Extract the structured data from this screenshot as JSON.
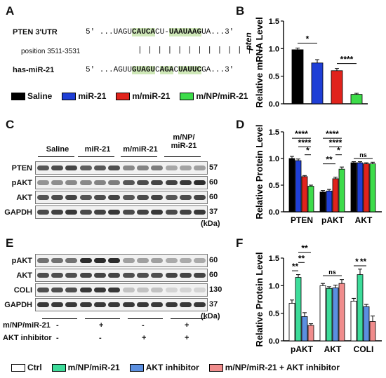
{
  "panel_letters": [
    "A",
    "B",
    "C",
    "D",
    "E",
    "F"
  ],
  "panelA": {
    "gene_label": "PTEN 3'UTR",
    "position": "position 3511-3531",
    "mirna_label": "has-miR-21",
    "seq_top": [
      {
        "t": "5' ...UAGU",
        "h": false
      },
      {
        "t": "CAUCA",
        "h": true
      },
      {
        "t": "CU-",
        "h": false
      },
      {
        "t": "UA",
        "h": true
      },
      {
        "t": "AUAAG",
        "h": true
      },
      {
        "t": "UA",
        "h": false
      },
      {
        "t": "...3'",
        "h": false
      }
    ],
    "pairs": "| | | | |    | | |   | | | | |",
    "seq_bottom": [
      {
        "t": "5' ...AGUU",
        "h": false
      },
      {
        "t": "GUAGU",
        "h": true
      },
      {
        "t": "C",
        "h": false
      },
      {
        "t": "AGA",
        "h": true
      },
      {
        "t": "C",
        "h": false
      },
      {
        "t": "UAUUC",
        "h": true
      },
      {
        "t": "GA",
        "h": false
      },
      {
        "t": "...3'",
        "h": false
      }
    ]
  },
  "legend_top": [
    {
      "label": "Saline",
      "color": "#000000"
    },
    {
      "label": "miR-21",
      "color": "#1f3fd6"
    },
    {
      "label": "m/miR-21",
      "color": "#e0231c"
    },
    {
      "label": "m/NP/miR-21",
      "color": "#3ddc4a"
    }
  ],
  "panelC": {
    "groups": [
      "Saline",
      "miR-21",
      "m/miR-21",
      "m/NP/\nmiR-21"
    ],
    "rows": [
      "PTEN",
      "pAKT",
      "AKT",
      "GAPDH"
    ],
    "mw": [
      "57",
      "60",
      "60",
      "37"
    ],
    "unit": "(kDa)"
  },
  "panelE": {
    "rows": [
      "pAKT",
      "AKT",
      "COLI",
      "GAPDH"
    ],
    "mw": [
      "60",
      "60",
      "130",
      "37"
    ],
    "unit": "(kDa)",
    "treat_labels": [
      "m/NP/miR-21",
      "AKT inhibitor"
    ],
    "treat_signs": [
      [
        "-",
        "+",
        "-",
        "+"
      ],
      [
        "-",
        "-",
        "+",
        "+"
      ]
    ]
  },
  "legend_bottom": [
    {
      "label": "Ctrl",
      "color": "#ffffff"
    },
    {
      "label": "m/NP/miR-21",
      "color": "#3ddc9a"
    },
    {
      "label": "AKT inhibitor",
      "color": "#5b8fe0"
    },
    {
      "label": "m/NP/miR-21 + AKT inhibitor",
      "color": "#f08c8c"
    }
  ],
  "chart_data": [
    {
      "id": "B",
      "type": "bar",
      "ylabel": "Relative mRNA Level",
      "italic_label": "pten",
      "ylim": [
        0,
        1.5
      ],
      "yticks": [
        0.0,
        0.5,
        1.0,
        1.5
      ],
      "categories": [
        "Saline",
        "miR-21",
        "m/miR-21",
        "m/NP/miR-21"
      ],
      "values": [
        0.98,
        0.74,
        0.6,
        0.17
      ],
      "errors": [
        0.03,
        0.06,
        0.04,
        0.02
      ],
      "colors": [
        "#000000",
        "#1f3fd6",
        "#e0231c",
        "#3ddc4a"
      ],
      "sig": [
        {
          "from": 0,
          "to": 1,
          "label": "*",
          "y": 1.1
        },
        {
          "from": 2,
          "to": 3,
          "label": "****",
          "y": 0.73
        }
      ]
    },
    {
      "id": "D",
      "type": "bar",
      "ylabel": "Relative Protein Level",
      "ylim": [
        0,
        1.5
      ],
      "yticks": [
        0.0,
        0.5,
        1.0,
        1.5
      ],
      "groups": [
        "PTEN",
        "pAKT",
        "AKT"
      ],
      "series": [
        {
          "name": "Saline",
          "color": "#000000",
          "values": [
            1.0,
            0.37,
            0.92
          ],
          "errors": [
            0.04,
            0.03,
            0.02
          ]
        },
        {
          "name": "miR-21",
          "color": "#1f3fd6",
          "values": [
            0.96,
            0.39,
            0.92
          ],
          "errors": [
            0.03,
            0.03,
            0.02
          ]
        },
        {
          "name": "m/miR-21",
          "color": "#e0231c",
          "values": [
            0.66,
            0.62,
            0.9
          ],
          "errors": [
            0.02,
            0.03,
            0.02
          ]
        },
        {
          "name": "m/NP/miR-21",
          "color": "#3ddc4a",
          "values": [
            0.48,
            0.8,
            0.9
          ],
          "errors": [
            0.02,
            0.04,
            0.03
          ]
        }
      ],
      "sig": [
        {
          "g": 0,
          "from": 0,
          "to": 3,
          "label": "****",
          "y": 1.38
        },
        {
          "g": 0,
          "from": 1,
          "to": 3,
          "label": "****",
          "y": 1.22
        },
        {
          "g": 0,
          "from": 2,
          "to": 3,
          "label": "*",
          "y": 1.07
        },
        {
          "g": 1,
          "from": 0,
          "to": 3,
          "label": "****",
          "y": 1.38
        },
        {
          "g": 1,
          "from": 1,
          "to": 3,
          "label": "****",
          "y": 1.22
        },
        {
          "g": 1,
          "from": 2,
          "to": 3,
          "label": "*",
          "y": 1.07
        },
        {
          "g": 1,
          "from": 0,
          "to": 2,
          "label": "**",
          "y": 0.9
        },
        {
          "g": 2,
          "from": 0,
          "to": 3,
          "label": "ns",
          "y": 1.0
        }
      ]
    },
    {
      "id": "F",
      "type": "bar",
      "ylabel": "Relative Protein Level",
      "ylim": [
        0,
        1.5
      ],
      "yticks": [
        0.0,
        0.5,
        1.0,
        1.5
      ],
      "groups": [
        "pAKT",
        "AKT",
        "COLI"
      ],
      "series": [
        {
          "name": "Ctrl",
          "color": "#ffffff",
          "values": [
            0.68,
            1.0,
            0.72
          ],
          "errors": [
            0.06,
            0.04,
            0.05
          ]
        },
        {
          "name": "m/NP/miR-21",
          "color": "#3ddc9a",
          "values": [
            1.15,
            0.95,
            1.2
          ],
          "errors": [
            0.05,
            0.03,
            0.1
          ]
        },
        {
          "name": "AKT inhibitor",
          "color": "#5b8fe0",
          "values": [
            0.44,
            0.96,
            0.62
          ],
          "errors": [
            0.07,
            0.05,
            0.04
          ]
        },
        {
          "name": "m/NP/miR-21 + AKT inhibitor",
          "color": "#f08c8c",
          "values": [
            0.28,
            1.04,
            0.35
          ],
          "errors": [
            0.03,
            0.07,
            0.1
          ]
        }
      ],
      "sig": [
        {
          "g": 0,
          "from": 0,
          "to": 1,
          "label": "**",
          "y": 1.27
        },
        {
          "g": 0,
          "from": 1,
          "to": 2,
          "label": "**",
          "y": 1.42
        },
        {
          "g": 0,
          "from": 1,
          "to": 3,
          "label": "**",
          "y": 1.6
        },
        {
          "g": 1,
          "from": 0,
          "to": 3,
          "label": "ns",
          "y": 1.18
        },
        {
          "g": 2,
          "from": 0,
          "to": 1,
          "label": "*",
          "y": 1.36
        },
        {
          "g": 2,
          "from": 1,
          "to": 2,
          "label": "**",
          "y": 1.36
        }
      ]
    }
  ]
}
